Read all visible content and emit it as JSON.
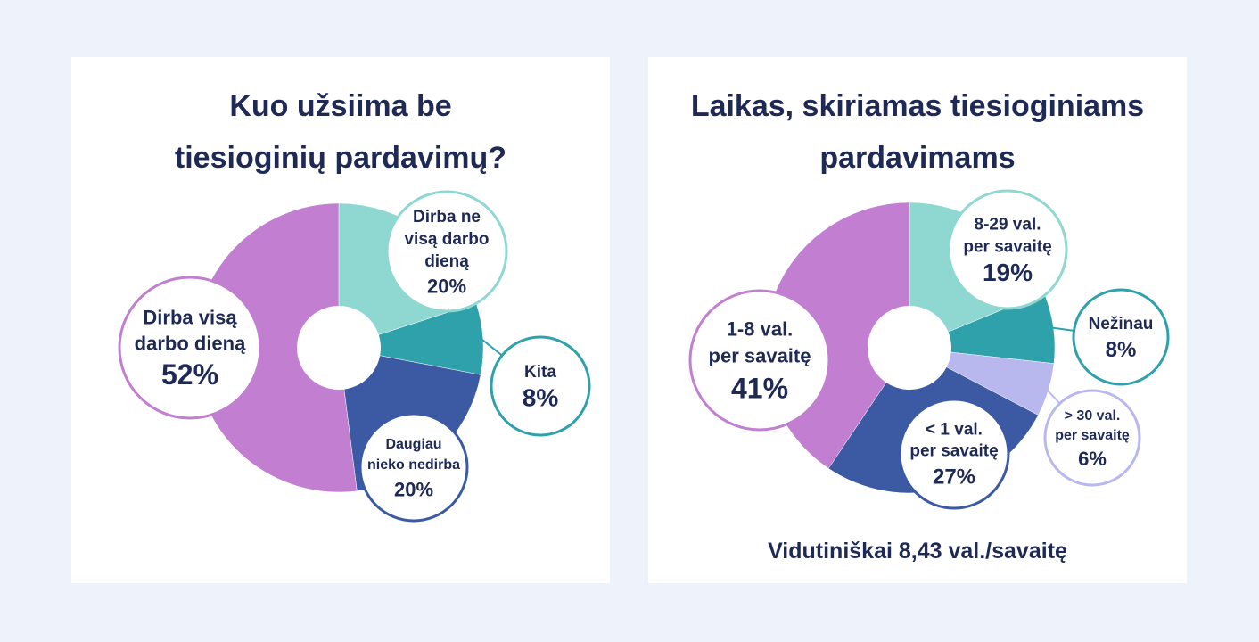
{
  "colors": {
    "purple": "#c27fd1",
    "teal_light": "#8fd8d2",
    "teal": "#2fa1ab",
    "navy": "#3b5aa3",
    "lavender": "#b9b8ee",
    "text_dark": "#1e2a55",
    "panel_bg": "#ffffff",
    "page_bg": "#eef3fb"
  },
  "chart_data": [
    {
      "type": "pie",
      "title_lines": [
        "Kuo užsiima be",
        "tiesioginių pardavimų?"
      ],
      "slices": [
        {
          "label_lines": [
            "Dirba ne",
            "visą darbo",
            "dieną"
          ],
          "value": 20,
          "value_label": "20%",
          "color": "#8fd8d2"
        },
        {
          "label_lines": [
            "Kita"
          ],
          "value": 8,
          "value_label": "8%",
          "color": "#2fa1ab"
        },
        {
          "label_lines": [
            "Daugiau",
            "nieko nedirba"
          ],
          "value": 20,
          "value_label": "20%",
          "color": "#3b5aa3"
        },
        {
          "label_lines": [
            "Dirba visą",
            "darbo dieną"
          ],
          "value": 52,
          "value_label": "52%",
          "color": "#c27fd1"
        }
      ]
    },
    {
      "type": "pie",
      "title_lines": [
        "Laikas, skiriamas tiesioginiams",
        "pardavimams"
      ],
      "slices": [
        {
          "label_lines": [
            "8-29 val.",
            "per savaitę"
          ],
          "value": 19,
          "value_label": "19%",
          "color": "#8fd8d2"
        },
        {
          "label_lines": [
            "Nežinau"
          ],
          "value": 8,
          "value_label": "8%",
          "color": "#2fa1ab"
        },
        {
          "label_lines": [
            "> 30 val.",
            "per savaitę"
          ],
          "value": 6,
          "value_label": "6%",
          "color": "#b9b8ee"
        },
        {
          "label_lines": [
            "< 1 val.",
            "per savaitę"
          ],
          "value": 27,
          "value_label": "27%",
          "color": "#3b5aa3"
        },
        {
          "label_lines": [
            "1-8 val.",
            "per savaitę"
          ],
          "value": 41,
          "value_label": "41%",
          "color": "#c27fd1"
        }
      ],
      "footnote": "Vidutiniškai 8,43 val./savaitę"
    }
  ]
}
